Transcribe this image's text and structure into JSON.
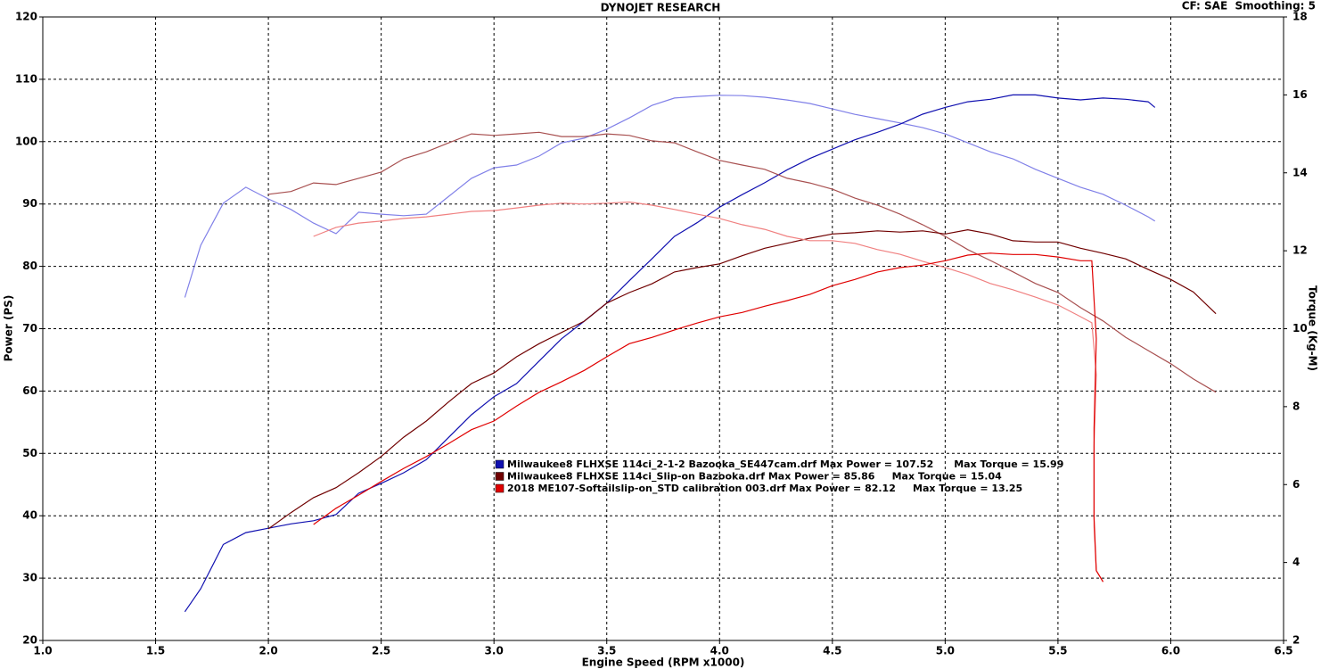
{
  "chart_data": {
    "type": "line",
    "title": "DYNOJET RESEARCH",
    "subtitle": "CF: SAE  Smoothing: 5",
    "x_label": "Engine Speed (RPM x1000)",
    "y_label": "Power (PS)",
    "y2_label": "Torque (Kg-M)",
    "xlim": [
      1.0,
      6.5
    ],
    "xticks": [
      {
        "value": 1,
        "label": "1.0"
      },
      1.5,
      {
        "value": 2,
        "label": "2.0"
      },
      2.5,
      {
        "value": 3,
        "label": "3.0"
      },
      3.5,
      {
        "value": 4,
        "label": "4.0"
      },
      4.5,
      {
        "value": 5,
        "label": "5.0"
      },
      5.5,
      {
        "value": 6,
        "label": "6.0"
      },
      6.5
    ],
    "ylim": [
      20,
      120
    ],
    "yticks": [
      20,
      30,
      40,
      50,
      60,
      70,
      80,
      90,
      100,
      110,
      120
    ],
    "y2lim": [
      2,
      18
    ],
    "y2ticks": [
      2,
      4,
      6,
      8,
      10,
      12,
      14,
      16,
      18
    ],
    "grid": true,
    "runs": [
      {
        "name": "Milwaukee8 FLHXSE 114ci_2-1-2 Bazooka_SE447cam.drf Max Power = 107.52      Max Torque = 15.99",
        "power_color": "#1010b0",
        "torque_color": "#8080e8",
        "x": [
          1.63,
          1.7,
          1.8,
          1.9,
          2.0,
          2.1,
          2.2,
          2.3,
          2.4,
          2.5,
          2.6,
          2.7,
          2.8,
          2.9,
          3.0,
          3.1,
          3.2,
          3.3,
          3.4,
          3.5,
          3.6,
          3.7,
          3.8,
          3.9,
          4.0,
          4.1,
          4.2,
          4.3,
          4.4,
          4.5,
          4.6,
          4.7,
          4.8,
          4.9,
          5.0,
          5.1,
          5.2,
          5.3,
          5.4,
          5.5,
          5.6,
          5.7,
          5.8,
          5.9,
          5.93
        ],
        "power": [
          24.6,
          28.3,
          35.4,
          37.3,
          38.0,
          38.7,
          39.2,
          40.2,
          43.6,
          45.2,
          46.9,
          49.0,
          52.6,
          56.2,
          59.1,
          61.2,
          64.8,
          68.4,
          71.2,
          74.1,
          77.7,
          81.2,
          84.8,
          87.0,
          89.5,
          91.5,
          93.4,
          95.5,
          97.3,
          98.8,
          100.3,
          101.5,
          102.8,
          104.4,
          105.5,
          106.4,
          106.8,
          107.5,
          107.5,
          107.0,
          106.7,
          107.0,
          106.8,
          106.4,
          105.5
        ],
        "torque": [
          10.8,
          12.14,
          13.22,
          13.63,
          13.33,
          13.06,
          12.71,
          12.44,
          12.99,
          12.94,
          12.9,
          12.94,
          13.4,
          13.86,
          14.13,
          14.2,
          14.43,
          14.77,
          14.89,
          15.12,
          15.41,
          15.73,
          15.92,
          15.96,
          15.99,
          15.98,
          15.94,
          15.87,
          15.78,
          15.64,
          15.5,
          15.39,
          15.28,
          15.16,
          15.0,
          14.77,
          14.54,
          14.36,
          14.09,
          13.86,
          13.63,
          13.45,
          13.17,
          12.87,
          12.76
        ]
      },
      {
        "name": "Milwaukee8 FLHXSE 114ci_Slip-on Bazooka.drf Max Power = 85.86     Max Torque = 15.04",
        "power_color": "#700000",
        "torque_color": "#a85050",
        "x": [
          2.0,
          2.1,
          2.2,
          2.3,
          2.4,
          2.5,
          2.6,
          2.7,
          2.8,
          2.9,
          3.0,
          3.1,
          3.2,
          3.3,
          3.4,
          3.5,
          3.6,
          3.7,
          3.8,
          3.9,
          4.0,
          4.1,
          4.2,
          4.3,
          4.4,
          4.5,
          4.6,
          4.7,
          4.8,
          4.9,
          5.0,
          5.1,
          5.2,
          5.3,
          5.4,
          5.5,
          5.6,
          5.7,
          5.8,
          5.9,
          6.0,
          6.1,
          6.2
        ],
        "power": [
          37.9,
          40.5,
          42.9,
          44.5,
          46.9,
          49.5,
          52.6,
          55.2,
          58.3,
          61.2,
          62.9,
          65.5,
          67.6,
          69.4,
          71.2,
          74.1,
          75.8,
          77.2,
          79.1,
          79.8,
          80.4,
          81.7,
          82.9,
          83.7,
          84.5,
          85.2,
          85.4,
          85.7,
          85.5,
          85.7,
          85.2,
          85.86,
          85.2,
          84.1,
          83.9,
          83.9,
          82.9,
          82.1,
          81.2,
          79.5,
          77.9,
          75.9,
          72.4
        ],
        "torque": [
          13.45,
          13.52,
          13.74,
          13.7,
          13.86,
          14.02,
          14.36,
          14.54,
          14.77,
          15.0,
          14.96,
          15.0,
          15.04,
          14.93,
          14.93,
          15.0,
          14.96,
          14.82,
          14.77,
          14.54,
          14.32,
          14.2,
          14.09,
          13.86,
          13.74,
          13.58,
          13.35,
          13.17,
          12.94,
          12.67,
          12.37,
          12.03,
          11.75,
          11.46,
          11.16,
          10.93,
          10.54,
          10.2,
          9.78,
          9.44,
          9.1,
          8.71,
          8.37
        ]
      },
      {
        "name": "2018 ME107-Softailslip-on_STD calibration 003.drf Max Power = 82.12     Max Torque = 13.25",
        "power_color": "#e00000",
        "torque_color": "#f08080",
        "x": [
          2.2,
          2.3,
          2.4,
          2.5,
          2.6,
          2.7,
          2.8,
          2.9,
          3.0,
          3.1,
          3.2,
          3.3,
          3.4,
          3.5,
          3.6,
          3.7,
          3.8,
          3.9,
          4.0,
          4.1,
          4.2,
          4.3,
          4.4,
          4.5,
          4.6,
          4.7,
          4.8,
          4.9,
          5.0,
          5.1,
          5.2,
          5.3,
          5.4,
          5.5,
          5.6,
          5.65,
          5.67,
          5.66,
          5.66,
          5.67,
          5.7
        ],
        "power": [
          38.6,
          41.2,
          43.3,
          45.5,
          47.6,
          49.5,
          51.6,
          53.8,
          55.2,
          57.6,
          59.8,
          61.5,
          63.3,
          65.5,
          67.6,
          68.6,
          69.8,
          70.9,
          71.9,
          72.6,
          73.6,
          74.5,
          75.5,
          76.9,
          77.9,
          79.1,
          79.8,
          80.2,
          80.9,
          81.8,
          82.12,
          81.9,
          81.9,
          81.5,
          80.9,
          80.9,
          68.4,
          54.0,
          39.7,
          31.2,
          29.4
        ],
        "torque": [
          12.37,
          12.6,
          12.71,
          12.76,
          12.83,
          12.87,
          12.94,
          13.01,
          13.03,
          13.1,
          13.17,
          13.22,
          13.2,
          13.22,
          13.25,
          13.17,
          13.06,
          12.94,
          12.83,
          12.67,
          12.55,
          12.37,
          12.26,
          12.26,
          12.19,
          12.03,
          11.91,
          11.73,
          11.57,
          11.39,
          11.16,
          11.0,
          10.81,
          10.61,
          10.31,
          10.15,
          8.82,
          6.99,
          4.93,
          3.79,
          3.51
        ]
      }
    ]
  }
}
